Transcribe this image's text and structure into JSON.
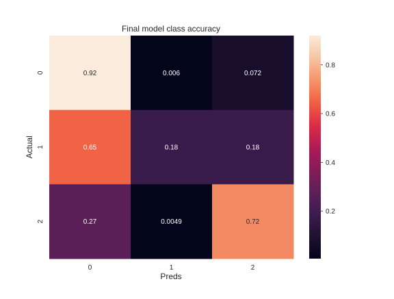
{
  "chart_data": {
    "type": "heatmap",
    "title": "Final model class accuracy",
    "xlabel": "Preds",
    "ylabel": "Actual",
    "x_categories": [
      "0",
      "1",
      "2"
    ],
    "y_categories": [
      "0",
      "1",
      "2"
    ],
    "values": [
      [
        0.92,
        0.006,
        0.072
      ],
      [
        0.65,
        0.18,
        0.18
      ],
      [
        0.27,
        0.0049,
        0.72
      ]
    ],
    "value_labels": [
      [
        "0.92",
        "0.006",
        "0.072"
      ],
      [
        "0.65",
        "0.18",
        "0.18"
      ],
      [
        "0.27",
        "0.0049",
        "0.72"
      ]
    ],
    "colorbar": {
      "range": [
        0.0049,
        0.92
      ],
      "ticks": [
        0.2,
        0.4,
        0.6,
        0.8
      ],
      "tick_labels": [
        "0.2",
        "0.4",
        "0.6",
        "0.8"
      ],
      "colormap": "rocket"
    },
    "grid": false,
    "legend": "colorbar-right"
  }
}
